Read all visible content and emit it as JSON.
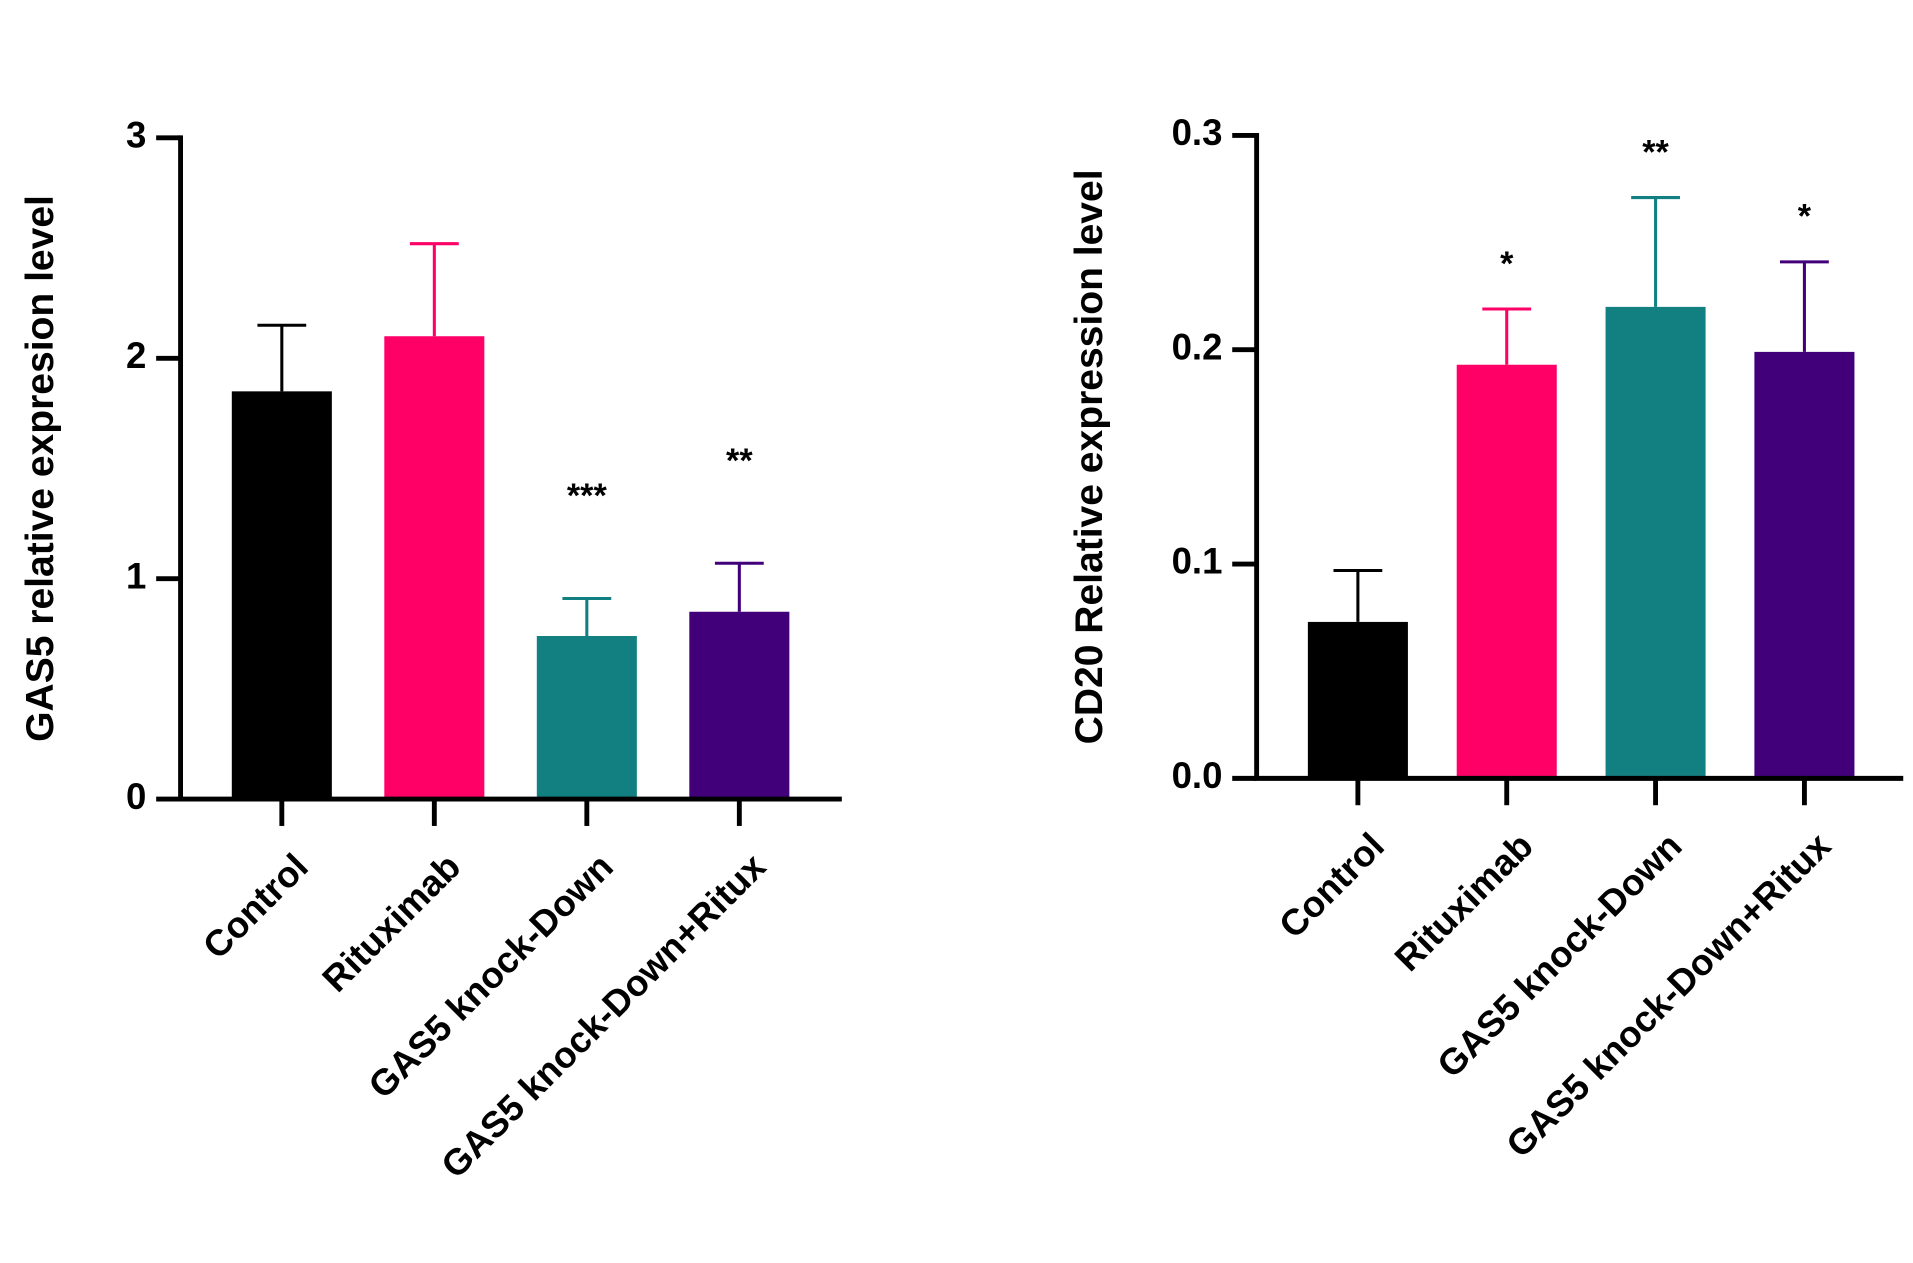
{
  "chart_data": [
    {
      "type": "bar",
      "y_label": "GAS5 relative expresion level",
      "categories": [
        "Control",
        "Rituximab",
        "GAS5 knock-Down",
        "GAS5 knock-Down+Ritux"
      ],
      "values": [
        1.85,
        2.1,
        0.74,
        0.85
      ],
      "errors": [
        0.3,
        0.42,
        0.17,
        0.22
      ],
      "annotations": [
        null,
        null,
        "***",
        "**"
      ],
      "colors": [
        "#000000",
        "#ff0066",
        "#128080",
        "#41007a"
      ],
      "ylim": [
        0,
        3
      ],
      "yticks": [
        0,
        1,
        2,
        3
      ]
    },
    {
      "type": "bar",
      "y_label": "CD20 Relative expression level",
      "categories": [
        "Control",
        "Rituximab",
        "GAS5 knock-Down",
        "GAS5 knock-Down+Ritux"
      ],
      "values": [
        0.073,
        0.193,
        0.22,
        0.199
      ],
      "errors": [
        0.024,
        0.026,
        0.051,
        0.042
      ],
      "annotations": [
        null,
        "*",
        "**",
        "*"
      ],
      "colors": [
        "#000000",
        "#ff0066",
        "#128080",
        "#41007a"
      ],
      "ylim": [
        0,
        0.3
      ],
      "yticks": [
        {
          "value": 0,
          "label": "0.0"
        },
        0.1,
        0.2,
        0.3
      ]
    }
  ]
}
